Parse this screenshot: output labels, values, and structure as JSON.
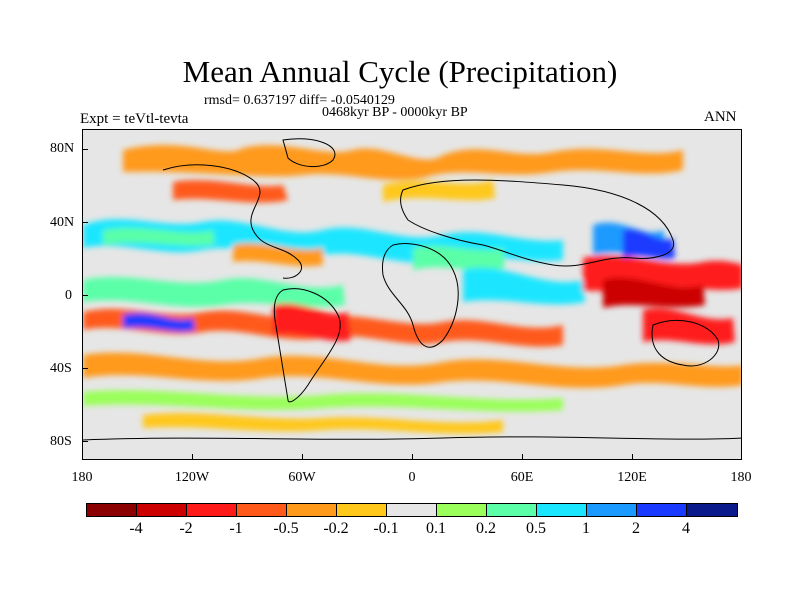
{
  "header": {
    "title": "Mean Annual Cycle (Precipitation)",
    "stats": "rmsd= 0.637197 diff= -0.0540129",
    "period": "0468kyr BP - 0000kyr BP",
    "experiment": "Expt = teVtl-tevta",
    "season": "ANN"
  },
  "axes": {
    "y_labels": [
      "80N",
      "40N",
      "0",
      "40S",
      "80S"
    ],
    "x_labels": [
      "180",
      "120W",
      "60W",
      "0",
      "60E",
      "120E",
      "180"
    ]
  },
  "colorbar": {
    "labels": [
      "-4",
      "-2",
      "-1",
      "-0.5",
      "-0.2",
      "-0.1",
      "0.1",
      "0.2",
      "0.5",
      "1",
      "2",
      "4"
    ],
    "colors": [
      "#8b0000",
      "#cc0000",
      "#ff1a1a",
      "#ff5a1a",
      "#ff9a1a",
      "#ffc81a",
      "#e6e6e6",
      "#9aff5a",
      "#5affa8",
      "#1ae6ff",
      "#1a9aff",
      "#1a3aff",
      "#0a1a8a"
    ]
  }
}
